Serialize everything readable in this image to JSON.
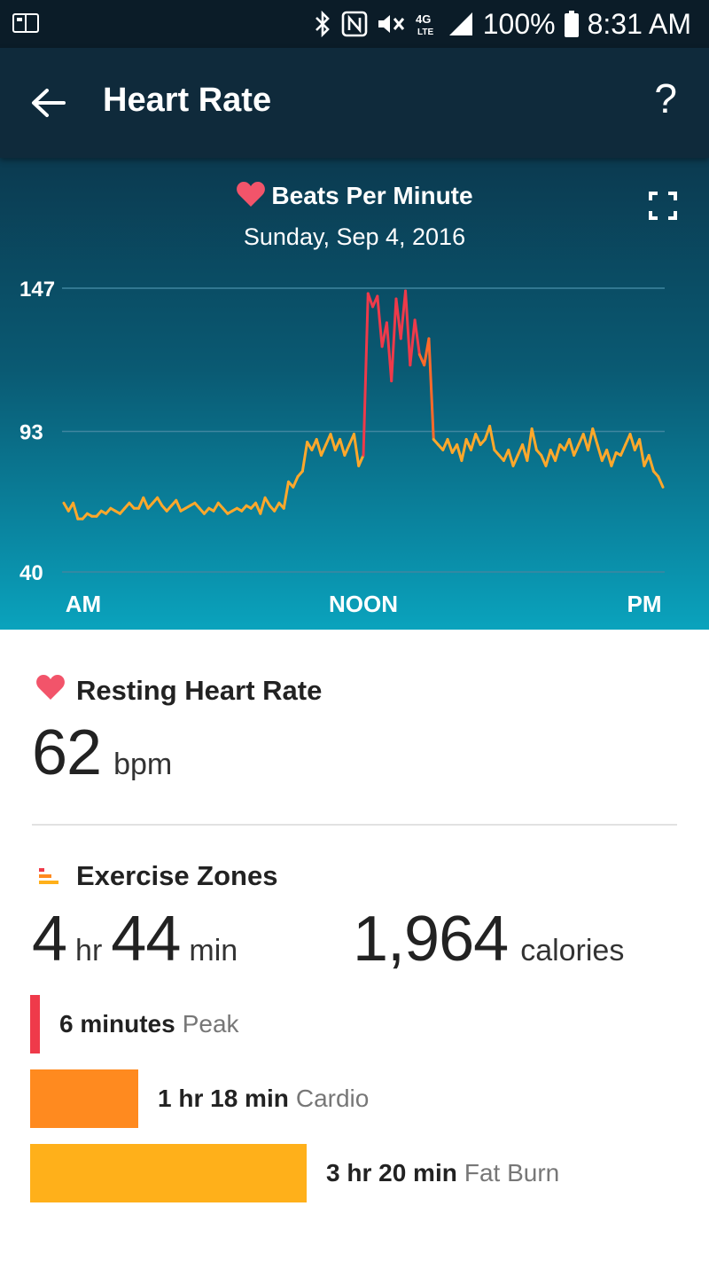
{
  "status_bar": {
    "battery": "100%",
    "time": "8:31 AM",
    "network": "4G LTE"
  },
  "header": {
    "title": "Heart Rate",
    "help_label": "?"
  },
  "chart": {
    "title": "Beats Per Minute",
    "date": "Sunday, Sep 4, 2016",
    "y_ticks": [
      "147",
      "93",
      "40"
    ],
    "x_ticks": [
      "AM",
      "NOON",
      "PM"
    ],
    "colors": {
      "fat_burn": "#ffa82b",
      "cardio": "#ff6a2a",
      "peak": "#ef3a4a",
      "grid": "#3f86a0"
    }
  },
  "chart_data": {
    "type": "line",
    "title": "Beats Per Minute",
    "xlabel": "",
    "ylabel": "",
    "ylim": [
      40,
      147
    ],
    "y_ticks": [
      147,
      93,
      40
    ],
    "x_tick_labels": [
      "AM",
      "NOON",
      "PM"
    ],
    "series": [
      {
        "values": [
          66,
          63,
          66,
          60,
          60,
          62,
          61,
          61,
          63,
          62,
          64,
          63,
          62,
          64,
          66,
          64,
          64,
          68,
          64,
          66,
          68,
          65,
          63,
          65,
          67,
          63,
          64,
          65,
          66,
          64,
          62,
          64,
          63,
          66,
          64,
          62,
          63,
          64,
          63,
          65,
          64,
          66,
          62,
          68,
          65,
          63,
          66,
          64,
          74,
          72,
          76,
          78,
          89,
          86,
          90,
          84,
          88,
          92,
          86,
          90,
          84,
          88,
          92,
          80,
          84,
          145,
          140,
          144,
          125,
          134,
          112,
          143,
          128,
          146,
          118,
          135,
          122,
          118,
          128,
          90,
          88,
          86,
          90,
          85,
          88,
          82,
          90,
          86,
          92,
          88,
          90,
          95,
          86,
          84,
          82,
          86,
          80,
          84,
          88,
          82,
          94,
          86,
          84,
          80,
          86,
          82,
          88,
          86,
          90,
          84,
          88,
          92,
          86,
          94,
          88,
          82,
          86,
          80,
          85,
          84,
          88,
          92,
          86,
          90,
          80,
          84,
          78,
          76,
          72
        ]
      }
    ]
  },
  "resting": {
    "label": "Resting Heart Rate",
    "value": "62",
    "unit": "bpm"
  },
  "exercise": {
    "label": "Exercise Zones",
    "hours": "4",
    "hours_unit": "hr",
    "minutes": "44",
    "minutes_unit": "min",
    "calories": "1,964",
    "calories_unit": "calories",
    "zones": [
      {
        "duration": "6 minutes",
        "name": "Peak",
        "minutes": 6,
        "color": "#ef3a4a"
      },
      {
        "duration": "1 hr 18 min",
        "name": "Cardio",
        "minutes": 78,
        "color": "#ff8a1f"
      },
      {
        "duration": "3 hr 20 min",
        "name": "Fat Burn",
        "minutes": 200,
        "color": "#ffb01a"
      }
    ]
  }
}
